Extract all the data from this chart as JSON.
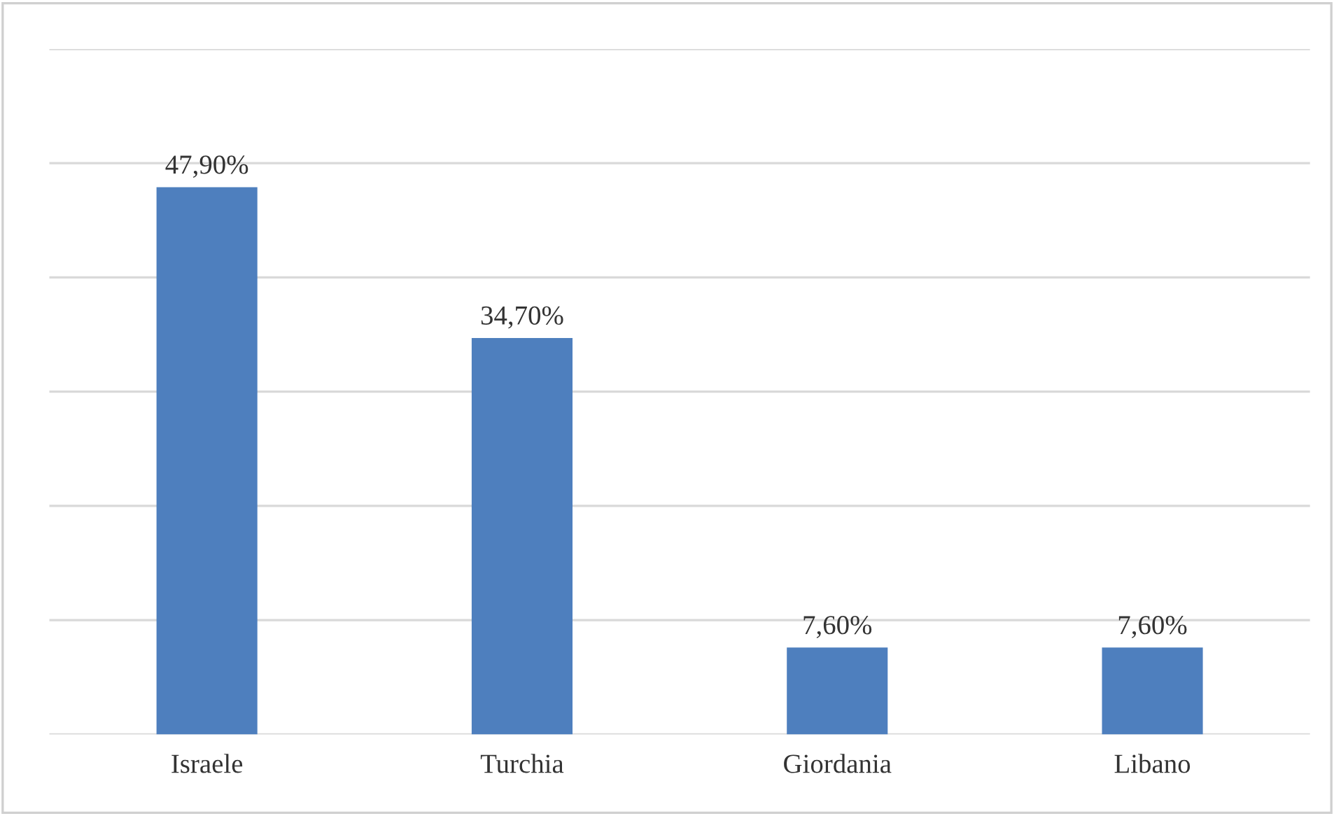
{
  "chart_data": {
    "type": "bar",
    "categories": [
      "Israele",
      "Turchia",
      "Giordania",
      "Libano"
    ],
    "values": [
      47.9,
      34.7,
      7.6,
      7.6
    ],
    "value_labels": [
      "47,90%",
      "34,70%",
      "7,60%",
      "7,60%"
    ],
    "color": "#4e7fbe",
    "ylim": [
      0,
      60
    ],
    "yticks": [
      {
        "value": 0,
        "label": null
      },
      {
        "value": 10,
        "label": null
      },
      {
        "value": 20,
        "label": null
      },
      {
        "value": 30,
        "label": null
      },
      {
        "value": 40,
        "label": null
      },
      {
        "value": 50,
        "label": null
      },
      {
        "value": 60,
        "label": null
      }
    ],
    "tick_labels": "x",
    "grid": "y",
    "legend": false
  }
}
